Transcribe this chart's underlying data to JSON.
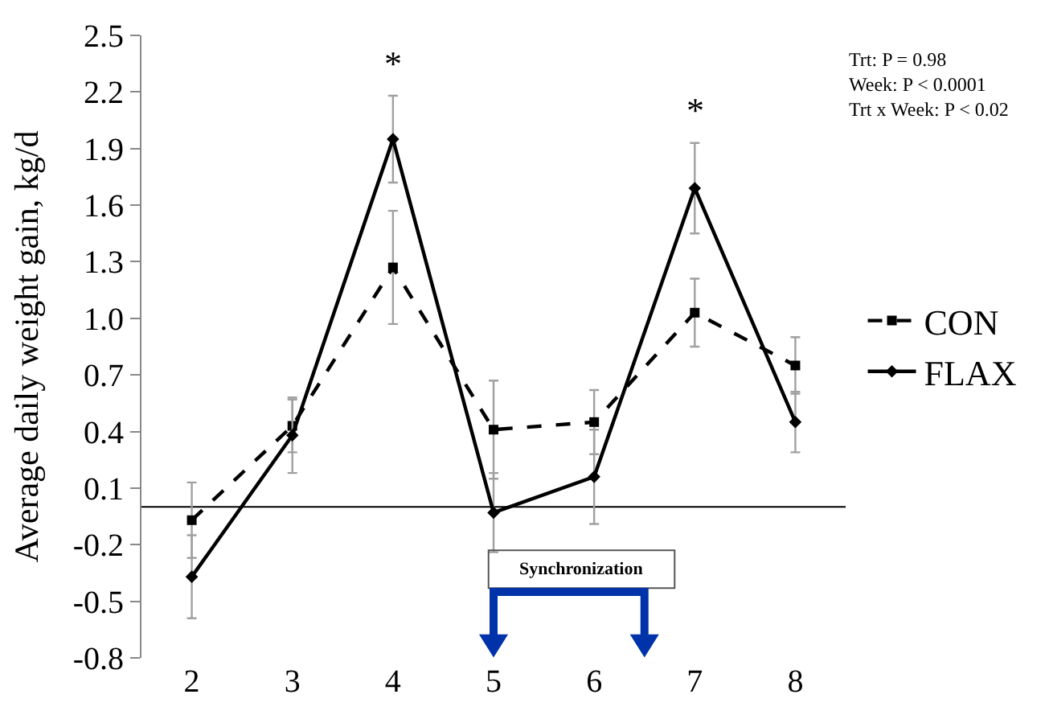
{
  "chart_data": {
    "type": "line",
    "ylabel": "Average daily weight gain, kg/d",
    "categories": [
      "2",
      "3",
      "4",
      "5",
      "6",
      "7",
      "8"
    ],
    "series": [
      {
        "name": "CON",
        "color": "#000000",
        "line_style": "dashed",
        "marker": "square",
        "values": [
          -0.07,
          0.43,
          1.27,
          0.41,
          0.45,
          1.03,
          0.75
        ],
        "errors": [
          0.2,
          0.14,
          0.3,
          0.26,
          0.17,
          0.18,
          0.15
        ]
      },
      {
        "name": "FLAX",
        "color": "#000000",
        "line_style": "solid",
        "marker": "diamond",
        "values": [
          -0.37,
          0.38,
          1.95,
          -0.03,
          0.16,
          1.69,
          0.45
        ],
        "errors": [
          0.22,
          0.2,
          0.23,
          0.21,
          0.25,
          0.24,
          0.16
        ]
      }
    ],
    "ylim": [
      -0.8,
      2.5
    ],
    "yticks": [
      -0.8,
      -0.5,
      -0.2,
      0.1,
      0.4,
      0.7,
      {
        "value": 1,
        "label": "1.0"
      },
      1.3,
      1.6,
      1.9,
      2.2,
      2.5
    ],
    "ref_lines": [
      {
        "axis": "y",
        "value": 0,
        "color": "#000000"
      }
    ],
    "annotations": [
      {
        "text": "*",
        "x": "4",
        "y": 2.18
      },
      {
        "text": "*",
        "x": "7",
        "y": 1.93
      },
      "Trt: P = 0.98\nWeek: P < 0.0001\nTrt x Week: P < 0.02",
      "Synchronization"
    ],
    "legend": "right",
    "grid": false
  }
}
